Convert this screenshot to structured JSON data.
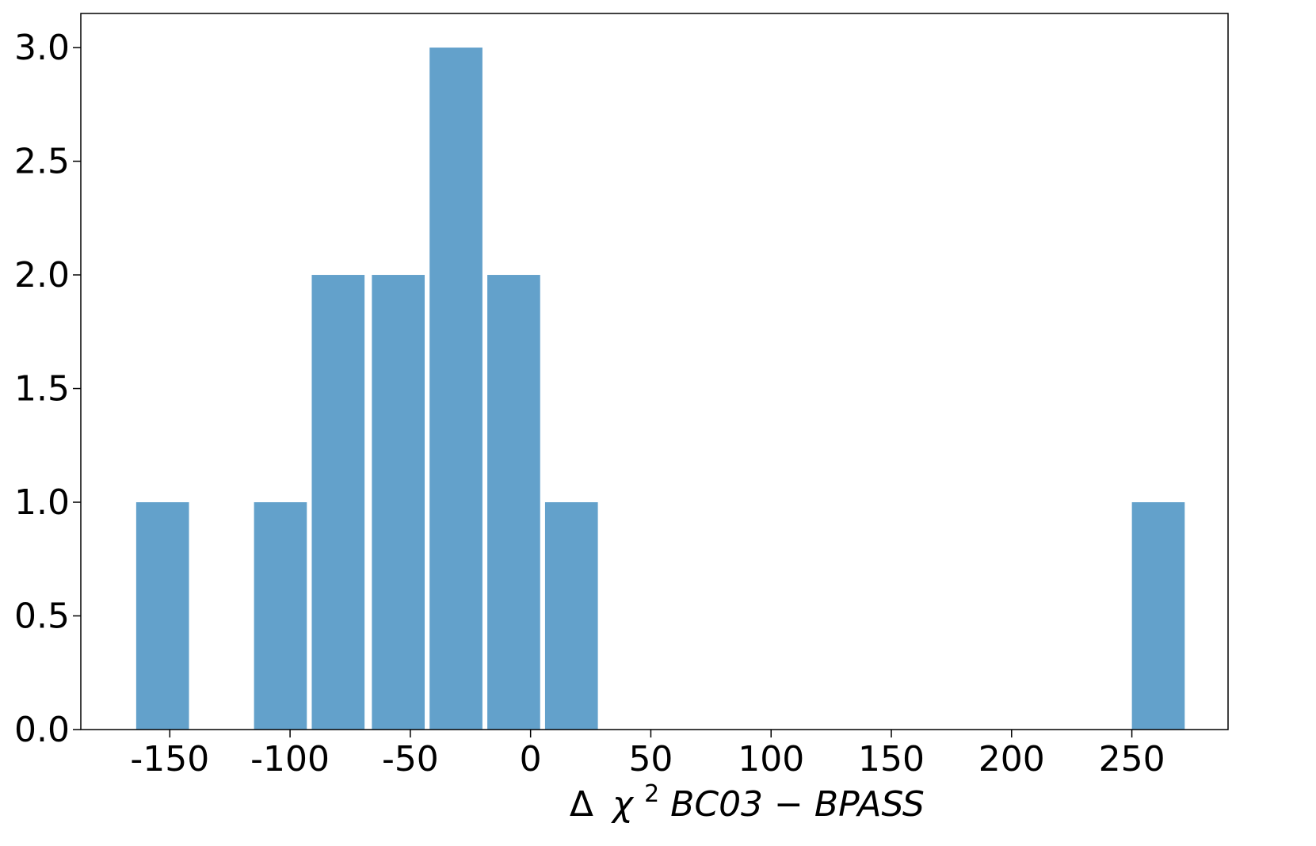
{
  "chart_data": {
    "type": "bar",
    "title": "",
    "xlabel_parts": {
      "delta": "Δ",
      "chi": "χ",
      "sup": "2",
      "rest": "BC03 − BPASS"
    },
    "ylabel": "",
    "bars": [
      {
        "x_center": -153,
        "value": 1
      },
      {
        "x_center": -104,
        "value": 1
      },
      {
        "x_center": -80,
        "value": 2
      },
      {
        "x_center": -55,
        "value": 2
      },
      {
        "x_center": -31,
        "value": 3
      },
      {
        "x_center": -7,
        "value": 2
      },
      {
        "x_center": 17,
        "value": 1
      },
      {
        "x_center": 261,
        "value": 1
      }
    ],
    "bin_width": 24.4,
    "bar_fill_fraction": 0.9,
    "xlim": [
      -187,
      290
    ],
    "ylim": [
      0,
      3.15
    ],
    "xticks": [
      -150,
      -100,
      -50,
      0,
      50,
      100,
      150,
      200,
      250
    ],
    "yticks": [
      0.0,
      0.5,
      1.0,
      1.5,
      2.0,
      2.5,
      3.0
    ],
    "xtick_labels": [
      "-150",
      "-100",
      "-50",
      "0",
      "50",
      "100",
      "150",
      "200",
      "250"
    ],
    "ytick_labels": [
      "0.0",
      "0.5",
      "1.0",
      "1.5",
      "2.0",
      "2.5",
      "3.0"
    ],
    "grid": false,
    "legend": "none",
    "colors": {
      "bar": "#63a1cb",
      "axis": "#000000"
    }
  }
}
